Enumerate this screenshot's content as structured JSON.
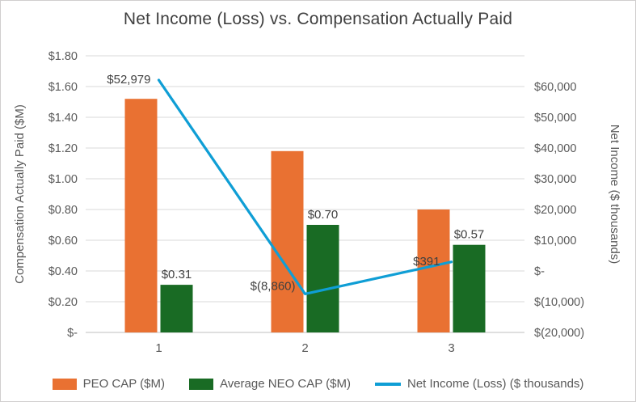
{
  "title": "Net Income (Loss) vs. Compensation Actually Paid",
  "colors": {
    "peo_bar": "#E97132",
    "neo_bar": "#196B24",
    "net_income_line": "#0F9ED5",
    "gridline": "#D9D9D9",
    "axis_line": "#BFBFBF",
    "tick_text": "#595959",
    "label_text": "#404040",
    "title_text": "#404040"
  },
  "chart_data": {
    "type": "combo",
    "subtype": "clustered bars (left axis) + line (right axis)",
    "categories": [
      "1",
      "2",
      "3"
    ],
    "series": [
      {
        "name": "PEO CAP ($M)",
        "kind": "bar",
        "axis": "left",
        "color": "#E97132",
        "values": [
          1.52,
          1.18,
          0.8
        ],
        "labels": [
          "",
          "",
          ""
        ]
      },
      {
        "name": "Average NEO CAP ($M)",
        "kind": "bar",
        "axis": "left",
        "color": "#196B24",
        "values": [
          0.31,
          0.7,
          0.57
        ],
        "labels": [
          "$0.31",
          "$0.70",
          "$0.57"
        ]
      },
      {
        "name": "Net Income (Loss) ($ thousands)",
        "kind": "line",
        "axis": "right",
        "color": "#0F9ED5",
        "values": [
          52979,
          -8860,
          391
        ],
        "labels": [
          "$52,979",
          "$(8,860)",
          "$391"
        ]
      }
    ],
    "left_axis": {
      "label": "Compensation Actually Paid ($M)",
      "min": 0,
      "max": 1.8,
      "step": 0.2,
      "ticks": [
        "$-",
        "$0.20",
        "$0.40",
        "$0.60",
        "$0.80",
        "$1.00",
        "$1.20",
        "$1.40",
        "$1.60",
        "$1.80"
      ]
    },
    "right_axis": {
      "label": "Net Income ($ thousands)",
      "min": -20000,
      "max": 60000,
      "step": 10000,
      "ticks": [
        "$(20,000)",
        "$(10,000)",
        "$-",
        "$10,000",
        "$20,000",
        "$30,000",
        "$40,000",
        "$50,000",
        "$60,000"
      ]
    },
    "grid": "horizontal only",
    "legend_position": "bottom"
  }
}
